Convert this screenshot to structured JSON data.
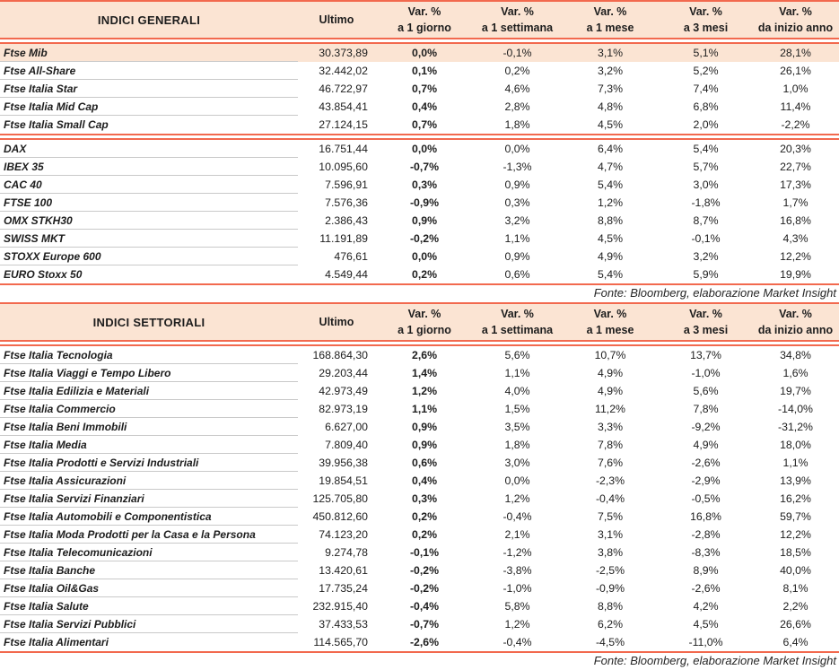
{
  "colors": {
    "accent_rule": "#f2694e",
    "header_bg": "#fbe4d3",
    "highlight_row_bg": "#fbe4d3",
    "text": "#1d1d1d",
    "row_divider": "#c9c9c9"
  },
  "tables": [
    {
      "title": "INDICI GENERALI",
      "ultimo_label": "Ultimo",
      "var_cols": [
        {
          "l1": "Var. %",
          "l2": "a 1 giorno"
        },
        {
          "l1": "Var. %",
          "l2": "a 1 settimana"
        },
        {
          "l1": "Var. %",
          "l2": "a 1 mese"
        },
        {
          "l1": "Var. %",
          "l2": "a 3 mesi"
        },
        {
          "l1": "Var. %",
          "l2": "da inizio anno"
        }
      ],
      "groups": [
        [
          {
            "name": "Ftse Mib",
            "ultimo": "30.373,89",
            "v1d": "0,0%",
            "v1w": "-0,1%",
            "v1m": "3,1%",
            "v3m": "5,1%",
            "ytd": "28,1%",
            "highlight": true
          },
          {
            "name": "Ftse All-Share",
            "ultimo": "32.442,02",
            "v1d": "0,1%",
            "v1w": "0,2%",
            "v1m": "3,2%",
            "v3m": "5,2%",
            "ytd": "26,1%"
          },
          {
            "name": "Ftse Italia Star",
            "ultimo": "46.722,97",
            "v1d": "0,7%",
            "v1w": "4,6%",
            "v1m": "7,3%",
            "v3m": "7,4%",
            "ytd": "1,0%"
          },
          {
            "name": "Ftse Italia Mid Cap",
            "ultimo": "43.854,41",
            "v1d": "0,4%",
            "v1w": "2,8%",
            "v1m": "4,8%",
            "v3m": "6,8%",
            "ytd": "11,4%"
          },
          {
            "name": "Ftse Italia Small Cap",
            "ultimo": "27.124,15",
            "v1d": "0,7%",
            "v1w": "1,8%",
            "v1m": "4,5%",
            "v3m": "2,0%",
            "ytd": "-2,2%"
          }
        ],
        [
          {
            "name": "DAX",
            "ultimo": "16.751,44",
            "v1d": "0,0%",
            "v1w": "0,0%",
            "v1m": "6,4%",
            "v3m": "5,4%",
            "ytd": "20,3%"
          },
          {
            "name": "IBEX 35",
            "ultimo": "10.095,60",
            "v1d": "-0,7%",
            "v1w": "-1,3%",
            "v1m": "4,7%",
            "v3m": "5,7%",
            "ytd": "22,7%"
          },
          {
            "name": "CAC 40",
            "ultimo": "7.596,91",
            "v1d": "0,3%",
            "v1w": "0,9%",
            "v1m": "5,4%",
            "v3m": "3,0%",
            "ytd": "17,3%"
          },
          {
            "name": "FTSE 100",
            "ultimo": "7.576,36",
            "v1d": "-0,9%",
            "v1w": "0,3%",
            "v1m": "1,2%",
            "v3m": "-1,8%",
            "ytd": "1,7%"
          },
          {
            "name": "OMX STKH30",
            "ultimo": "2.386,43",
            "v1d": "0,9%",
            "v1w": "3,2%",
            "v1m": "8,8%",
            "v3m": "8,7%",
            "ytd": "16,8%"
          },
          {
            "name": "SWISS MKT",
            "ultimo": "11.191,89",
            "v1d": "-0,2%",
            "v1w": "1,1%",
            "v1m": "4,5%",
            "v3m": "-0,1%",
            "ytd": "4,3%"
          },
          {
            "name": "STOXX Europe 600",
            "ultimo": "476,61",
            "v1d": "0,0%",
            "v1w": "0,9%",
            "v1m": "4,9%",
            "v3m": "3,2%",
            "ytd": "12,2%"
          },
          {
            "name": "EURO Stoxx 50",
            "ultimo": "4.549,44",
            "v1d": "0,2%",
            "v1w": "0,6%",
            "v1m": "5,4%",
            "v3m": "5,9%",
            "ytd": "19,9%"
          }
        ]
      ],
      "source": "Fonte: Bloomberg, elaborazione Market Insight"
    },
    {
      "title": "INDICI SETTORIALI",
      "ultimo_label": "Ultimo",
      "var_cols": [
        {
          "l1": "Var. %",
          "l2": "a 1 giorno"
        },
        {
          "l1": "Var. %",
          "l2": "a 1 settimana"
        },
        {
          "l1": "Var. %",
          "l2": "a 1 mese"
        },
        {
          "l1": "Var. %",
          "l2": "a 3 mesi"
        },
        {
          "l1": "Var. %",
          "l2": "da inizio anno"
        }
      ],
      "groups": [
        [
          {
            "name": "Ftse Italia Tecnologia",
            "ultimo": "168.864,30",
            "v1d": "2,6%",
            "v1w": "5,6%",
            "v1m": "10,7%",
            "v3m": "13,7%",
            "ytd": "34,8%"
          },
          {
            "name": "Ftse Italia Viaggi e Tempo Libero",
            "ultimo": "29.203,44",
            "v1d": "1,4%",
            "v1w": "1,1%",
            "v1m": "4,9%",
            "v3m": "-1,0%",
            "ytd": "1,6%"
          },
          {
            "name": "Ftse Italia Edilizia e Materiali",
            "ultimo": "42.973,49",
            "v1d": "1,2%",
            "v1w": "4,0%",
            "v1m": "4,9%",
            "v3m": "5,6%",
            "ytd": "19,7%"
          },
          {
            "name": "Ftse Italia Commercio",
            "ultimo": "82.973,19",
            "v1d": "1,1%",
            "v1w": "1,5%",
            "v1m": "11,2%",
            "v3m": "7,8%",
            "ytd": "-14,0%"
          },
          {
            "name": "Ftse Italia Beni Immobili",
            "ultimo": "6.627,00",
            "v1d": "0,9%",
            "v1w": "3,5%",
            "v1m": "3,3%",
            "v3m": "-9,2%",
            "ytd": "-31,2%"
          },
          {
            "name": "Ftse Italia Media",
            "ultimo": "7.809,40",
            "v1d": "0,9%",
            "v1w": "1,8%",
            "v1m": "7,8%",
            "v3m": "4,9%",
            "ytd": "18,0%"
          },
          {
            "name": "Ftse Italia Prodotti e Servizi Industriali",
            "ultimo": "39.956,38",
            "v1d": "0,6%",
            "v1w": "3,0%",
            "v1m": "7,6%",
            "v3m": "-2,6%",
            "ytd": "1,1%"
          },
          {
            "name": "Ftse Italia Assicurazioni",
            "ultimo": "19.854,51",
            "v1d": "0,4%",
            "v1w": "0,0%",
            "v1m": "-2,3%",
            "v3m": "-2,9%",
            "ytd": "13,9%"
          },
          {
            "name": "Ftse Italia Servizi Finanziari",
            "ultimo": "125.705,80",
            "v1d": "0,3%",
            "v1w": "1,2%",
            "v1m": "-0,4%",
            "v3m": "-0,5%",
            "ytd": "16,2%"
          },
          {
            "name": "Ftse Italia Automobili e Componentistica",
            "ultimo": "450.812,60",
            "v1d": "0,2%",
            "v1w": "-0,4%",
            "v1m": "7,5%",
            "v3m": "16,8%",
            "ytd": "59,7%"
          },
          {
            "name": "Ftse Italia Moda Prodotti per la Casa e la Persona",
            "ultimo": "74.123,20",
            "v1d": "0,2%",
            "v1w": "2,1%",
            "v1m": "3,1%",
            "v3m": "-2,8%",
            "ytd": "12,2%"
          },
          {
            "name": "Ftse Italia Telecomunicazioni",
            "ultimo": "9.274,78",
            "v1d": "-0,1%",
            "v1w": "-1,2%",
            "v1m": "3,8%",
            "v3m": "-8,3%",
            "ytd": "18,5%"
          },
          {
            "name": "Ftse Italia Banche",
            "ultimo": "13.420,61",
            "v1d": "-0,2%",
            "v1w": "-3,8%",
            "v1m": "-2,5%",
            "v3m": "8,9%",
            "ytd": "40,0%"
          },
          {
            "name": "Ftse Italia Oil&Gas",
            "ultimo": "17.735,24",
            "v1d": "-0,2%",
            "v1w": "-1,0%",
            "v1m": "-0,9%",
            "v3m": "-2,6%",
            "ytd": "8,1%"
          },
          {
            "name": "Ftse Italia Salute",
            "ultimo": "232.915,40",
            "v1d": "-0,4%",
            "v1w": "5,8%",
            "v1m": "8,8%",
            "v3m": "4,2%",
            "ytd": "2,2%"
          },
          {
            "name": "Ftse Italia Servizi Pubblici",
            "ultimo": "37.433,53",
            "v1d": "-0,7%",
            "v1w": "1,2%",
            "v1m": "6,2%",
            "v3m": "4,5%",
            "ytd": "26,6%"
          },
          {
            "name": "Ftse Italia Alimentari",
            "ultimo": "114.565,70",
            "v1d": "-2,6%",
            "v1w": "-0,4%",
            "v1m": "-4,5%",
            "v3m": "-11,0%",
            "ytd": "6,4%"
          }
        ]
      ],
      "source": "Fonte: Bloomberg, elaborazione Market Insight"
    }
  ]
}
